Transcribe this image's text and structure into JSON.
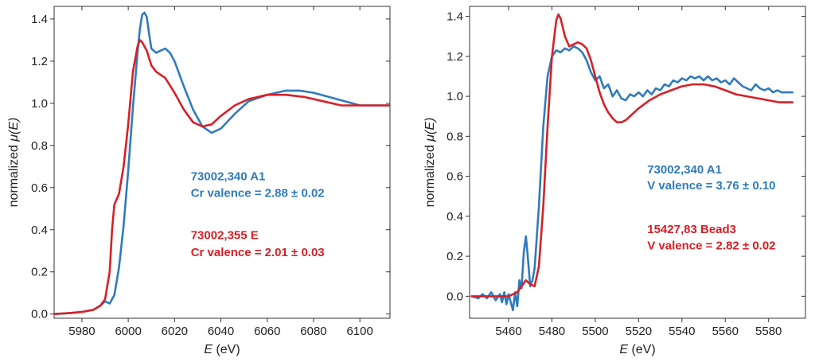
{
  "colors": {
    "blue": "#2f7bbd",
    "red": "#d62027"
  },
  "chart_data": [
    {
      "type": "line",
      "title": "",
      "xlabel": {
        "var": "E",
        "unit": " (eV)"
      },
      "ylabel": {
        "prefix": "normalized ",
        "var": "μ(E)"
      },
      "xlim": [
        5968,
        6113
      ],
      "ylim": [
        -0.02,
        1.46
      ],
      "xticks": [
        5980,
        6000,
        6020,
        6040,
        6060,
        6080,
        6100
      ],
      "yticks": [
        0.0,
        0.2,
        0.4,
        0.6,
        0.8,
        1.0,
        1.2,
        1.4
      ],
      "xtick_labels": [
        "5980",
        "6000",
        "6020",
        "6040",
        "6060",
        "6080",
        "6100"
      ],
      "ytick_labels": [
        "0.0",
        "0.2",
        "0.4",
        "0.6",
        "0.8",
        "1.0",
        "1.2",
        "1.4"
      ],
      "grid": false,
      "series": [
        {
          "color": "blue",
          "x": [
            5968,
            5975,
            5980,
            5985,
            5988,
            5990,
            5992,
            5994,
            5996,
            5998,
            6000,
            6002,
            6004,
            6005,
            6006,
            6007,
            6008,
            6009,
            6010,
            6012,
            6014,
            6016,
            6018,
            6020,
            6024,
            6028,
            6032,
            6036,
            6040,
            6046,
            6052,
            6060,
            6068,
            6074,
            6080,
            6090,
            6100,
            6113
          ],
          "y": [
            0.0,
            0.005,
            0.01,
            0.02,
            0.04,
            0.06,
            0.05,
            0.09,
            0.22,
            0.42,
            0.68,
            0.98,
            1.24,
            1.35,
            1.42,
            1.43,
            1.41,
            1.33,
            1.26,
            1.24,
            1.25,
            1.26,
            1.24,
            1.2,
            1.08,
            0.97,
            0.89,
            0.86,
            0.88,
            0.95,
            1.01,
            1.04,
            1.06,
            1.06,
            1.05,
            1.02,
            0.99,
            0.99
          ]
        },
        {
          "color": "red",
          "x": [
            5968,
            5975,
            5980,
            5985,
            5988,
            5990,
            5992,
            5993,
            5994,
            5996,
            5998,
            6000,
            6002,
            6004,
            6005,
            6006,
            6008,
            6010,
            6012,
            6016,
            6020,
            6024,
            6028,
            6032,
            6036,
            6040,
            6046,
            6052,
            6060,
            6068,
            6076,
            6084,
            6092,
            6100,
            6113
          ],
          "y": [
            0.0,
            0.005,
            0.01,
            0.02,
            0.04,
            0.07,
            0.2,
            0.4,
            0.52,
            0.57,
            0.7,
            0.9,
            1.15,
            1.27,
            1.3,
            1.29,
            1.25,
            1.18,
            1.15,
            1.12,
            1.05,
            0.97,
            0.91,
            0.89,
            0.9,
            0.94,
            0.99,
            1.02,
            1.04,
            1.04,
            1.03,
            1.01,
            0.99,
            0.99,
            0.99
          ]
        }
      ],
      "annotations": [
        {
          "text": "73002,340 A1",
          "color": "blue",
          "x": 6027,
          "y": 0.635
        },
        {
          "text": "Cr valence = 2.88 ± 0.02",
          "color": "blue",
          "x": 6027,
          "y": 0.555
        },
        {
          "text": "73002,355 E",
          "color": "red",
          "x": 6027,
          "y": 0.355
        },
        {
          "text": "Cr valence = 2.01 ± 0.03",
          "color": "red",
          "x": 6027,
          "y": 0.275
        }
      ]
    },
    {
      "type": "line",
      "title": "",
      "xlabel": {
        "var": "E",
        "unit": " (eV)"
      },
      "ylabel": {
        "prefix": "normalized ",
        "var": "μ(E)"
      },
      "xlim": [
        5442,
        5597
      ],
      "ylim": [
        -0.11,
        1.45
      ],
      "xticks": [
        5460,
        5480,
        5500,
        5520,
        5540,
        5560,
        5580
      ],
      "yticks": [
        0.0,
        0.2,
        0.4,
        0.6,
        0.8,
        1.0,
        1.2,
        1.4
      ],
      "xtick_labels": [
        "5460",
        "5480",
        "5500",
        "5520",
        "5540",
        "5560",
        "5580"
      ],
      "ytick_labels": [
        "0.0",
        "0.2",
        "0.4",
        "0.6",
        "0.8",
        "1.0",
        "1.2",
        "1.4"
      ],
      "grid": false,
      "series": [
        {
          "color": "blue",
          "x": [
            5443,
            5446,
            5448,
            5450,
            5452,
            5454,
            5456,
            5457,
            5458,
            5459,
            5460,
            5461,
            5462,
            5463,
            5464,
            5465,
            5466,
            5467,
            5468,
            5469,
            5470,
            5471,
            5472,
            5474,
            5476,
            5478,
            5480,
            5482,
            5484,
            5486,
            5488,
            5490,
            5492,
            5494,
            5496,
            5498,
            5500,
            5502,
            5504,
            5506,
            5508,
            5510,
            5512,
            5514,
            5516,
            5518,
            5520,
            5522,
            5524,
            5526,
            5528,
            5530,
            5532,
            5534,
            5536,
            5538,
            5540,
            5542,
            5544,
            5546,
            5548,
            5550,
            5552,
            5554,
            5556,
            5558,
            5560,
            5562,
            5564,
            5566,
            5568,
            5570,
            5572,
            5574,
            5576,
            5578,
            5580,
            5582,
            5584,
            5586,
            5588,
            5591
          ],
          "y": [
            0.0,
            -0.01,
            0.01,
            -0.01,
            0.02,
            -0.02,
            0.01,
            -0.03,
            0.02,
            -0.04,
            0.01,
            -0.03,
            -0.07,
            0.02,
            -0.05,
            0.08,
            0.04,
            0.22,
            0.3,
            0.18,
            0.05,
            0.08,
            0.14,
            0.45,
            0.85,
            1.1,
            1.2,
            1.23,
            1.22,
            1.24,
            1.23,
            1.25,
            1.24,
            1.22,
            1.18,
            1.12,
            1.08,
            1.1,
            1.04,
            1.06,
            1.0,
            1.03,
            0.99,
            0.98,
            1.01,
            1.0,
            1.02,
            1.0,
            1.03,
            1.01,
            1.04,
            1.03,
            1.06,
            1.05,
            1.08,
            1.07,
            1.09,
            1.08,
            1.1,
            1.09,
            1.1,
            1.08,
            1.1,
            1.08,
            1.09,
            1.07,
            1.08,
            1.06,
            1.09,
            1.07,
            1.05,
            1.04,
            1.03,
            1.06,
            1.04,
            1.03,
            1.04,
            1.02,
            1.03,
            1.02,
            1.02,
            1.02
          ]
        },
        {
          "color": "red",
          "x": [
            5443,
            5450,
            5455,
            5460,
            5462,
            5464,
            5466,
            5468,
            5470,
            5472,
            5474,
            5476,
            5478,
            5480,
            5482,
            5483,
            5484,
            5486,
            5488,
            5490,
            5492,
            5494,
            5496,
            5498,
            5500,
            5502,
            5504,
            5506,
            5508,
            5510,
            5512,
            5514,
            5516,
            5520,
            5525,
            5530,
            5535,
            5540,
            5545,
            5550,
            5555,
            5560,
            5565,
            5570,
            5575,
            5580,
            5585,
            5591
          ],
          "y": [
            0.0,
            0.0,
            0.0,
            0.0,
            0.01,
            0.02,
            0.05,
            0.08,
            0.06,
            0.05,
            0.15,
            0.45,
            0.85,
            1.2,
            1.38,
            1.41,
            1.39,
            1.3,
            1.25,
            1.26,
            1.27,
            1.26,
            1.24,
            1.18,
            1.1,
            1.02,
            0.96,
            0.92,
            0.89,
            0.87,
            0.87,
            0.88,
            0.9,
            0.94,
            0.98,
            1.01,
            1.03,
            1.05,
            1.06,
            1.06,
            1.05,
            1.03,
            1.01,
            1.0,
            0.99,
            0.98,
            0.97,
            0.97
          ]
        }
      ],
      "annotations": [
        {
          "text": "73002,340 A1",
          "color": "blue",
          "x": 5524,
          "y": 0.615
        },
        {
          "text": "V valence = 3.76 ± 0.10",
          "color": "blue",
          "x": 5524,
          "y": 0.535
        },
        {
          "text": "15427,83 Bead3",
          "color": "red",
          "x": 5524,
          "y": 0.315
        },
        {
          "text": "V valence = 2.82 ± 0.02",
          "color": "red",
          "x": 5524,
          "y": 0.235
        }
      ]
    }
  ]
}
